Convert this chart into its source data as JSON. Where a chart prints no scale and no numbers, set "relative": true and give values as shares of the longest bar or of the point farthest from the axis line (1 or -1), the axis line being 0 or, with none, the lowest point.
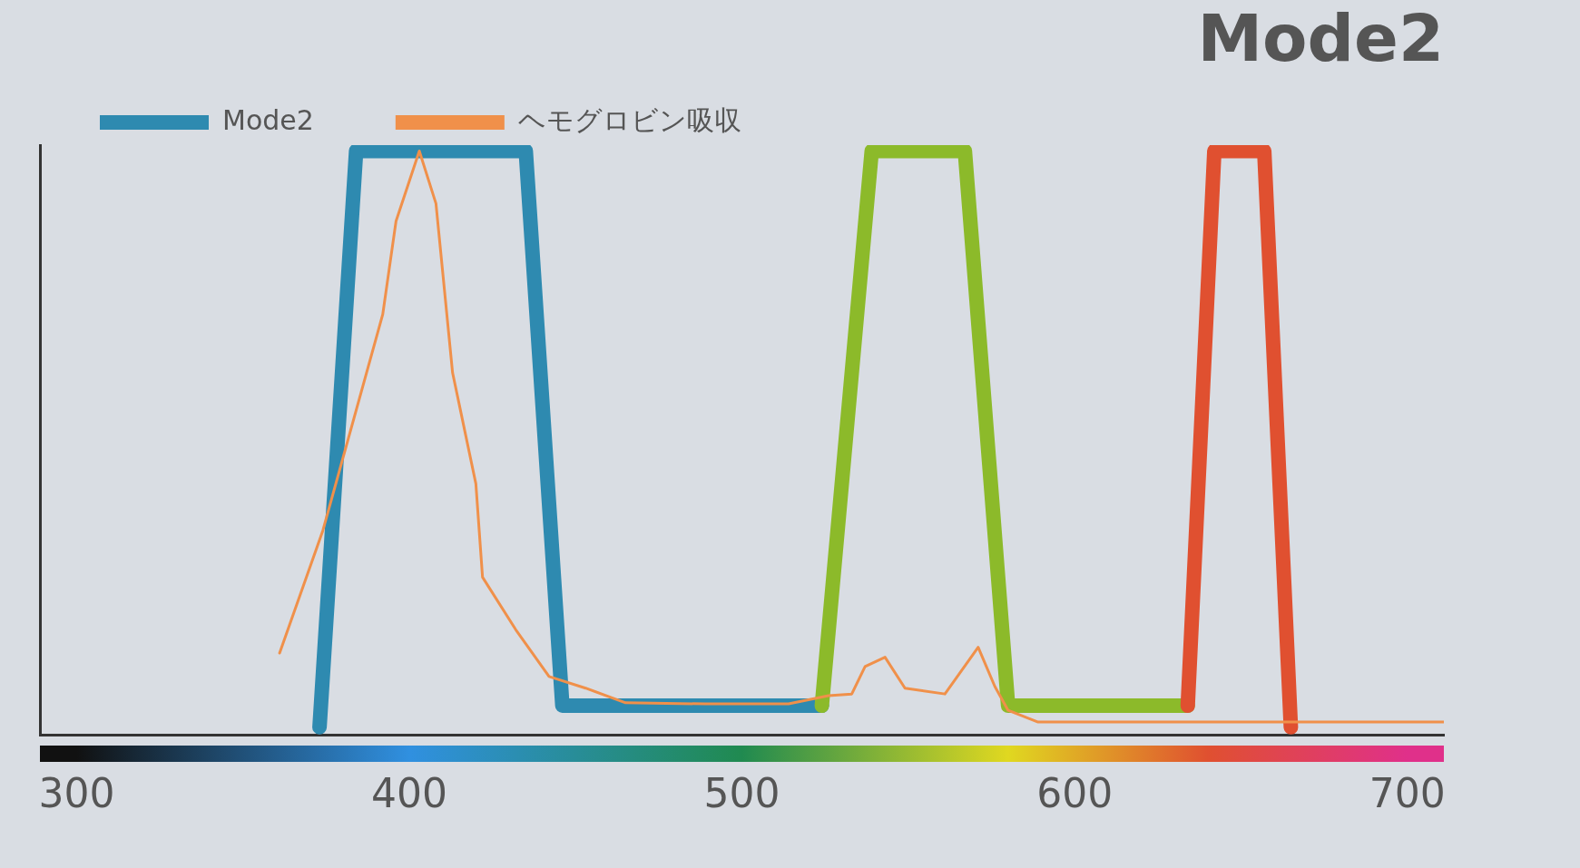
{
  "chart_data": {
    "type": "line",
    "title": "Mode2",
    "relative": true,
    "xlim": [
      289,
      711
    ],
    "xticks": [
      300,
      400,
      500,
      600,
      700
    ],
    "grid": false,
    "legend": "top left",
    "marker": "none",
    "series": [
      {
        "name": "Mode2",
        "color": "#2e8ab0",
        "x": [
          373,
          384,
          435,
          446,
          524
        ],
        "values": [
          0.013,
          1,
          1,
          0.05,
          0.05
        ]
      },
      {
        "color": "#8cba2a",
        "x": [
          524,
          539,
          567,
          580,
          634
        ],
        "values": [
          0.05,
          1,
          1,
          0.05,
          0.05
        ]
      },
      {
        "color": "#e05030",
        "x": [
          634,
          642,
          657,
          665
        ],
        "values": [
          0.05,
          1,
          1,
          0.013
        ]
      },
      {
        "name": "ヘモグロビン吸収",
        "color": "#f0904a",
        "x": [
          361,
          374,
          392,
          396,
          403,
          408,
          413,
          420,
          422,
          432,
          442,
          453,
          465,
          489,
          514,
          526,
          533,
          537,
          543,
          549,
          561,
          571,
          576,
          580,
          589,
          611,
          711
        ],
        "values": [
          0.14,
          0.35,
          0.72,
          0.88,
          1,
          0.91,
          0.62,
          0.43,
          0.27,
          0.18,
          0.1,
          0.08,
          0.055,
          0.053,
          0.053,
          0.067,
          0.07,
          0.117,
          0.133,
          0.08,
          0.07,
          0.15,
          0.083,
          0.042,
          0.022,
          0.022,
          0.022
        ]
      }
    ]
  }
}
